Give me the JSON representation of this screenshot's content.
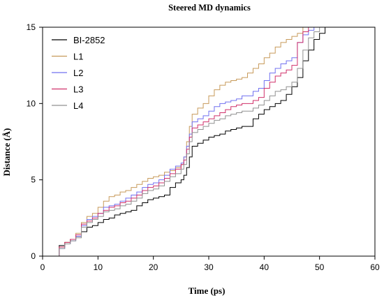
{
  "chart_data": {
    "type": "line",
    "title": "Steered MD dynamics",
    "xlabel": "Time (ps)",
    "ylabel": "Distance (Å)",
    "xlim": [
      0,
      60
    ],
    "ylim": [
      0,
      15
    ],
    "xticks": [
      0,
      10,
      20,
      30,
      40,
      50,
      60
    ],
    "yticks": [
      0,
      5,
      10,
      15
    ],
    "grid": false,
    "legend_position": "top-left",
    "step": true,
    "series": [
      {
        "name": "BI-2852",
        "color": "#000000",
        "x": [
          3,
          4,
          5,
          6,
          7,
          8,
          9,
          10,
          11,
          12,
          13,
          14,
          15,
          16,
          17,
          18,
          19,
          20,
          21,
          22,
          23,
          24,
          25,
          25.5,
          26,
          26.5,
          27,
          28,
          29,
          30,
          31,
          32,
          33,
          34,
          35,
          36,
          37,
          38,
          39,
          40,
          41,
          42,
          43,
          44,
          45,
          46,
          47,
          48,
          49,
          50,
          51
        ],
        "y": [
          0.7,
          0.9,
          1.1,
          1.3,
          1.6,
          1.9,
          2.0,
          2.2,
          2.4,
          2.5,
          2.7,
          2.8,
          2.9,
          3.0,
          3.3,
          3.5,
          3.7,
          3.8,
          3.9,
          4.0,
          4.5,
          4.8,
          5.0,
          5.3,
          5.8,
          6.5,
          7.2,
          7.4,
          7.6,
          7.8,
          7.9,
          8.0,
          8.2,
          8.3,
          8.4,
          8.5,
          8.5,
          9.0,
          9.3,
          9.6,
          9.8,
          10.0,
          10.2,
          10.6,
          11.1,
          11.7,
          12.8,
          13.5,
          14.2,
          14.6,
          15.0
        ]
      },
      {
        "name": "L1",
        "color": "#c79a5a",
        "x": [
          3,
          4,
          5,
          6,
          7,
          8,
          9,
          10,
          11,
          12,
          13,
          14,
          15,
          16,
          17,
          18,
          19,
          20,
          21,
          22,
          23,
          24,
          25,
          25.5,
          26,
          26.5,
          27,
          28,
          29,
          30,
          31,
          32,
          33,
          34,
          35,
          36,
          37,
          38,
          39,
          40,
          41,
          42,
          43,
          44,
          45,
          46,
          47
        ],
        "y": [
          0.6,
          0.9,
          1.1,
          1.5,
          2.2,
          2.6,
          2.8,
          3.2,
          3.6,
          3.9,
          4.0,
          4.2,
          4.3,
          4.5,
          4.7,
          4.9,
          5.1,
          5.2,
          5.3,
          5.5,
          5.6,
          5.8,
          6.0,
          6.5,
          7.5,
          8.5,
          9.3,
          9.7,
          10.0,
          10.5,
          10.9,
          11.2,
          11.4,
          11.5,
          11.6,
          11.7,
          12.0,
          12.3,
          12.6,
          13.0,
          13.3,
          13.7,
          14.0,
          14.2,
          14.4,
          14.6,
          15.0
        ]
      },
      {
        "name": "L2",
        "color": "#7070f0",
        "x": [
          3,
          4,
          5,
          6,
          7,
          8,
          9,
          10,
          11,
          12,
          13,
          14,
          15,
          16,
          17,
          18,
          19,
          20,
          21,
          22,
          23,
          24,
          25,
          25.5,
          26,
          26.5,
          27,
          28,
          29,
          30,
          31,
          32,
          33,
          34,
          35,
          36,
          37,
          38,
          39,
          40,
          41,
          42,
          43,
          44,
          45,
          46,
          47,
          48,
          49
        ],
        "y": [
          0.5,
          0.8,
          1.0,
          1.3,
          2.0,
          2.4,
          2.6,
          2.8,
          3.2,
          3.3,
          3.4,
          3.6,
          3.8,
          4.0,
          4.2,
          4.5,
          4.7,
          4.8,
          5.0,
          5.3,
          5.7,
          5.9,
          6.1,
          6.5,
          7.2,
          8.0,
          8.8,
          9.0,
          9.2,
          9.5,
          9.8,
          10.0,
          10.1,
          10.2,
          10.3,
          10.5,
          10.5,
          10.8,
          11.0,
          11.5,
          12.0,
          12.3,
          12.6,
          12.8,
          13.0,
          14.0,
          14.5,
          14.8,
          15.0
        ]
      },
      {
        "name": "L3",
        "color": "#d0306a",
        "x": [
          3,
          4,
          5,
          6,
          7,
          8,
          9,
          10,
          11,
          12,
          13,
          14,
          15,
          16,
          17,
          18,
          19,
          20,
          21,
          22,
          23,
          24,
          25,
          25.5,
          26,
          26.5,
          27,
          28,
          29,
          30,
          31,
          32,
          33,
          34,
          35,
          36,
          37,
          38,
          39,
          40,
          41,
          42,
          43,
          44,
          45,
          46,
          47,
          48
        ],
        "y": [
          0.6,
          0.9,
          1.1,
          1.4,
          2.1,
          2.3,
          2.5,
          2.8,
          3.0,
          3.2,
          3.3,
          3.5,
          3.6,
          3.8,
          4.0,
          4.3,
          4.5,
          4.6,
          4.8,
          5.1,
          5.4,
          5.7,
          6.0,
          6.3,
          7.0,
          7.8,
          8.4,
          8.6,
          8.8,
          9.0,
          9.2,
          9.4,
          9.6,
          9.8,
          9.9,
          10.0,
          10.0,
          10.2,
          10.4,
          11.0,
          11.4,
          11.8,
          12.0,
          12.2,
          12.5,
          14.0,
          14.7,
          15.0
        ]
      },
      {
        "name": "L4",
        "color": "#909090",
        "x": [
          3,
          4,
          5,
          6,
          7,
          8,
          9,
          10,
          11,
          12,
          13,
          14,
          15,
          16,
          17,
          18,
          19,
          20,
          21,
          22,
          23,
          24,
          25,
          25.5,
          26,
          26.5,
          27,
          28,
          29,
          30,
          31,
          32,
          33,
          34,
          35,
          36,
          37,
          38,
          39,
          40,
          41,
          42,
          43,
          44,
          45,
          46,
          47,
          48,
          49,
          50
        ],
        "y": [
          0.5,
          0.8,
          1.0,
          1.2,
          1.9,
          2.2,
          2.4,
          2.6,
          2.9,
          3.0,
          3.1,
          3.3,
          3.4,
          3.6,
          3.8,
          4.1,
          4.3,
          4.4,
          4.6,
          4.9,
          5.2,
          5.4,
          5.7,
          6.0,
          6.7,
          7.5,
          8.1,
          8.3,
          8.5,
          8.7,
          8.9,
          9.0,
          9.2,
          9.3,
          9.4,
          9.5,
          9.5,
          9.7,
          9.9,
          10.2,
          10.5,
          10.8,
          10.9,
          11.1,
          11.4,
          12.3,
          13.5,
          14.3,
          14.7,
          15.0
        ]
      }
    ]
  }
}
